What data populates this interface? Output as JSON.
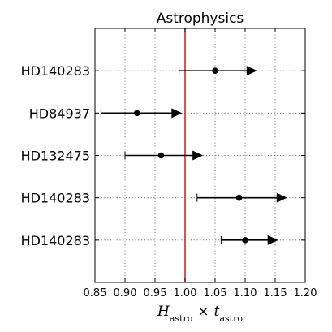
{
  "chart_data": {
    "type": "scatter",
    "title": "Astrophysics",
    "xlabel_parts": {
      "h": "H",
      "h_sub": "astro",
      "times": "×",
      "t": "t",
      "t_sub": "astro"
    },
    "xlim": [
      0.85,
      1.2
    ],
    "xticks": [
      "0.85",
      "0.90",
      "0.95",
      "1.00",
      "1.05",
      "1.10",
      "1.15",
      "1.20"
    ],
    "xtick_values": [
      0.85,
      0.9,
      0.95,
      1.0,
      1.05,
      1.1,
      1.15,
      1.2
    ],
    "reference_line": {
      "x": 1.0,
      "color": "#d62728"
    },
    "grid": true,
    "marker_color": "#000000",
    "points": [
      {
        "label": "HD140283",
        "value": 1.05,
        "lower": 0.99,
        "arrow_to": 1.12
      },
      {
        "label": "HD84937",
        "value": 0.92,
        "lower": 0.86,
        "arrow_to": 0.995
      },
      {
        "label": "HD132475",
        "value": 0.96,
        "lower": 0.9,
        "arrow_to": 1.03
      },
      {
        "label": "HD140283",
        "value": 1.09,
        "lower": 1.02,
        "arrow_to": 1.17
      },
      {
        "label": "HD140283",
        "value": 1.1,
        "lower": 1.06,
        "arrow_to": 1.155
      }
    ]
  }
}
